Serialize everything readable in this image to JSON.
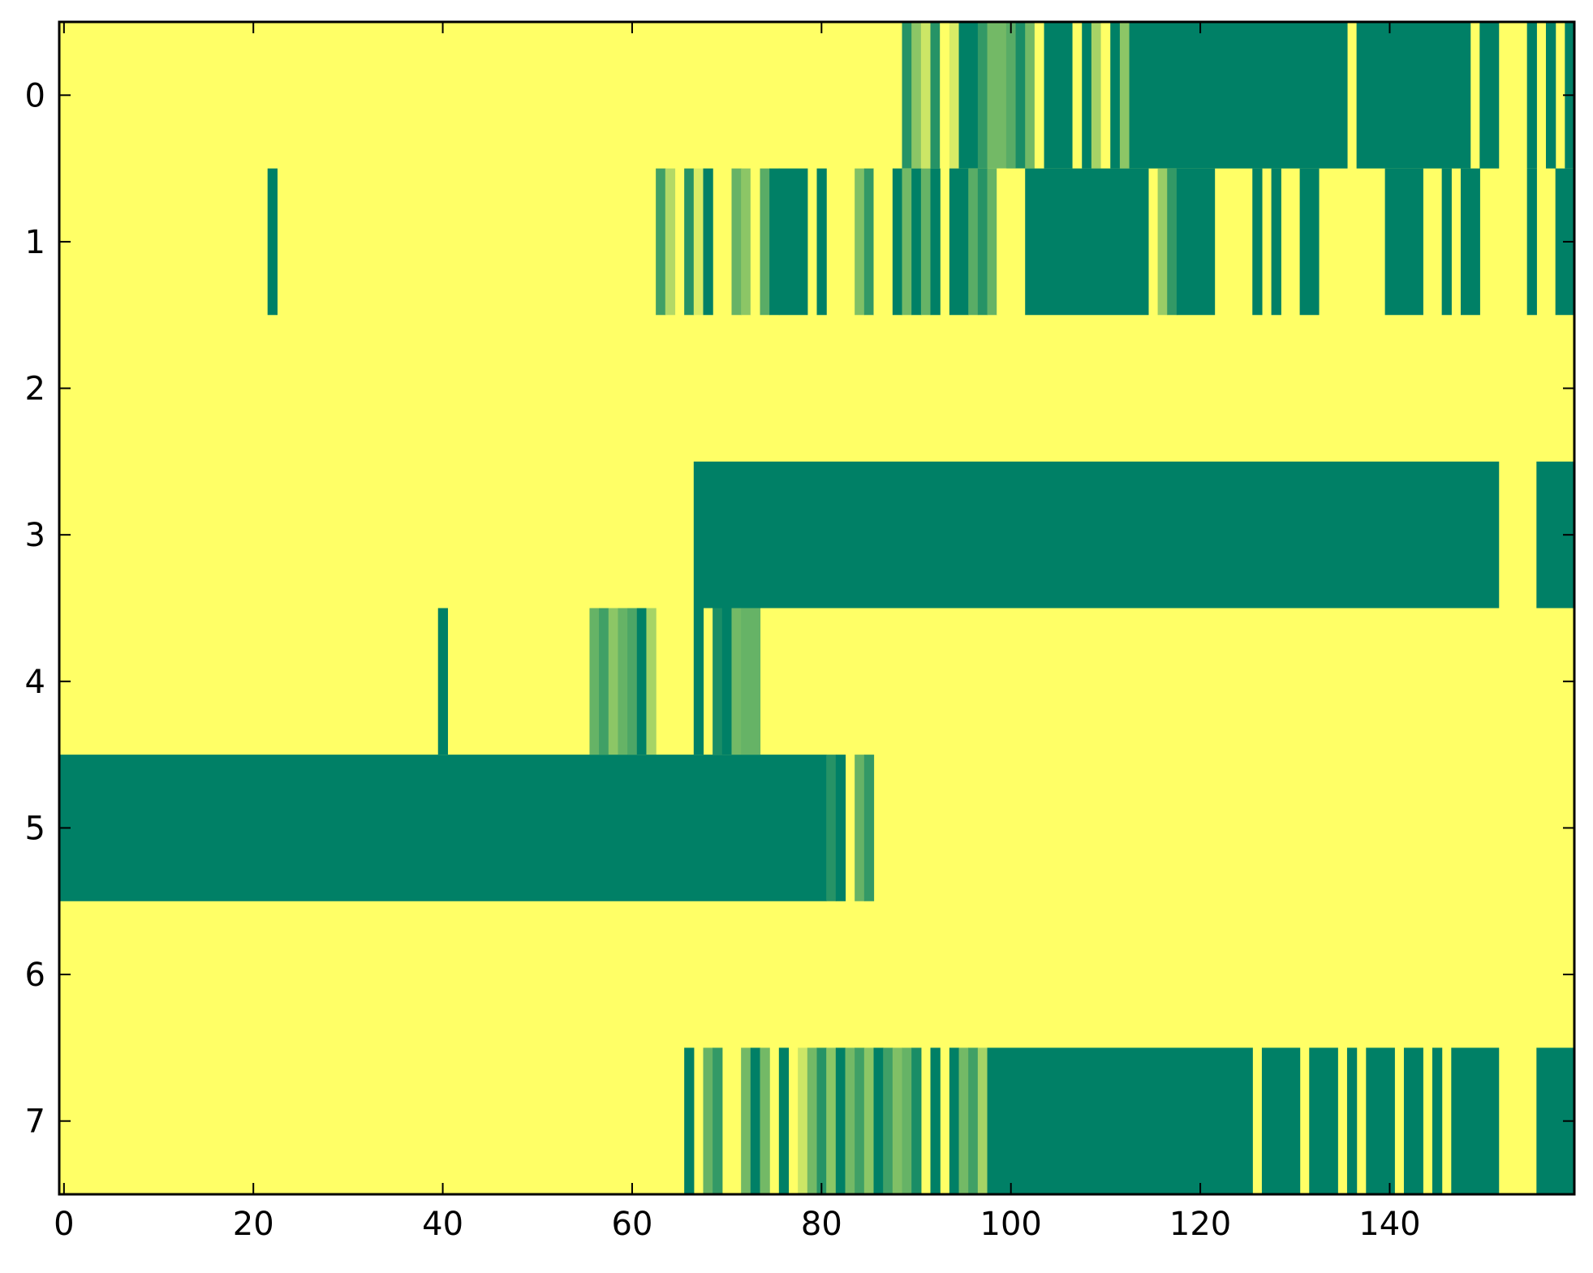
{
  "chart_data": {
    "type": "heatmap",
    "title": "",
    "xlabel": "",
    "ylabel": "",
    "xlim": [
      -0.5,
      159.5
    ],
    "ylim": [
      7.5,
      -0.5
    ],
    "x_ticks": [
      0,
      20,
      40,
      60,
      80,
      100,
      120,
      140
    ],
    "x_tick_labels": [
      "0",
      "20",
      "40",
      "60",
      "80",
      "100",
      "120",
      "140"
    ],
    "y_ticks": [
      0,
      1,
      2,
      3,
      4,
      5,
      6,
      7
    ],
    "y_tick_labels": [
      "0",
      "1",
      "2",
      "3",
      "4",
      "5",
      "6",
      "7"
    ],
    "grid": false,
    "legend": "none",
    "colormap": "summer_r",
    "value_range": [
      0,
      1
    ],
    "background_value": 0,
    "colors": {
      "low": "#ffff66",
      "high": "#008066"
    },
    "rows": [
      {
        "row": 0,
        "segments": [
          [
            89,
            90,
            0.85
          ],
          [
            90,
            91,
            0.45
          ],
          [
            91,
            92,
            0.2
          ],
          [
            92,
            93,
            0.85
          ],
          [
            93,
            94,
            0.0
          ],
          [
            94,
            95,
            0.15
          ],
          [
            95,
            97,
            1.0
          ],
          [
            97,
            98,
            0.8
          ],
          [
            98,
            100,
            0.55
          ],
          [
            100,
            101,
            0.65
          ],
          [
            101,
            102,
            0.9
          ],
          [
            102,
            103,
            0.55
          ],
          [
            103,
            104,
            0.0
          ],
          [
            104,
            107,
            1.0
          ],
          [
            107,
            108,
            0.0
          ],
          [
            108,
            109,
            1.0
          ],
          [
            109,
            110,
            0.35
          ],
          [
            110,
            111,
            0.0
          ],
          [
            111,
            112,
            1.0
          ],
          [
            112,
            113,
            0.45
          ],
          [
            113,
            136,
            1.0
          ],
          [
            137,
            149,
            1.0
          ],
          [
            150,
            152,
            1.0
          ],
          [
            155,
            156,
            1.0
          ],
          [
            157,
            158,
            1.0
          ],
          [
            159,
            160,
            1.0
          ]
        ]
      },
      {
        "row": 1,
        "segments": [
          [
            22,
            23,
            1.0
          ],
          [
            63,
            64,
            0.75
          ],
          [
            64,
            65,
            0.3
          ],
          [
            66,
            67,
            0.85
          ],
          [
            67,
            68,
            0.15
          ],
          [
            68,
            69,
            1.0
          ],
          [
            71,
            72,
            0.6
          ],
          [
            72,
            73,
            0.45
          ],
          [
            73,
            74,
            0.0
          ],
          [
            74,
            75,
            0.65
          ],
          [
            75,
            76,
            1.0
          ],
          [
            76,
            79,
            1.0
          ],
          [
            80,
            81,
            1.0
          ],
          [
            84,
            85,
            0.5
          ],
          [
            85,
            86,
            0.8
          ],
          [
            86,
            87,
            0.0
          ],
          [
            87,
            88,
            0.0
          ],
          [
            88,
            89,
            1.0
          ],
          [
            89,
            90,
            0.55
          ],
          [
            90,
            91,
            1.0
          ],
          [
            91,
            92,
            0.6
          ],
          [
            92,
            93,
            1.0
          ],
          [
            94,
            96,
            1.0
          ],
          [
            96,
            97,
            0.65
          ],
          [
            97,
            98,
            0.85
          ],
          [
            98,
            99,
            0.6
          ],
          [
            99,
            100,
            0.0
          ],
          [
            101,
            102,
            0.0
          ],
          [
            102,
            115,
            1.0
          ],
          [
            116,
            117,
            0.4
          ],
          [
            117,
            118,
            0.8
          ],
          [
            118,
            122,
            1.0
          ],
          [
            126,
            127,
            1.0
          ],
          [
            128,
            129,
            1.0
          ],
          [
            131,
            133,
            1.0
          ],
          [
            140,
            144,
            1.0
          ],
          [
            146,
            147,
            1.0
          ],
          [
            148,
            150,
            1.0
          ],
          [
            155,
            156,
            1.0
          ],
          [
            158,
            160,
            1.0
          ]
        ]
      },
      {
        "row": 2,
        "segments": []
      },
      {
        "row": 3,
        "segments": [
          [
            67,
            152,
            1.0
          ],
          [
            156,
            160,
            1.0
          ]
        ]
      },
      {
        "row": 4,
        "segments": [
          [
            40,
            41,
            1.0
          ],
          [
            56,
            57,
            0.6
          ],
          [
            57,
            58,
            0.75
          ],
          [
            58,
            59,
            0.45
          ],
          [
            59,
            60,
            0.6
          ],
          [
            60,
            61,
            0.7
          ],
          [
            61,
            62,
            1.0
          ],
          [
            62,
            63,
            0.35
          ],
          [
            67,
            68,
            1.0
          ],
          [
            69,
            70,
            0.9
          ],
          [
            70,
            71,
            1.0
          ],
          [
            71,
            72,
            0.55
          ],
          [
            72,
            74,
            0.6
          ]
        ]
      },
      {
        "row": 5,
        "segments": [
          [
            0,
            81,
            1.0
          ],
          [
            81,
            82,
            0.85
          ],
          [
            82,
            83,
            1.0
          ],
          [
            84,
            85,
            0.6
          ],
          [
            85,
            86,
            0.8
          ]
        ]
      },
      {
        "row": 6,
        "segments": []
      },
      {
        "row": 7,
        "segments": [
          [
            66,
            67,
            1.0
          ],
          [
            68,
            69,
            0.6
          ],
          [
            69,
            70,
            0.8
          ],
          [
            72,
            73,
            0.55
          ],
          [
            73,
            74,
            1.0
          ],
          [
            74,
            75,
            0.55
          ],
          [
            76,
            77,
            1.0
          ],
          [
            78,
            79,
            0.2
          ],
          [
            79,
            80,
            0.55
          ],
          [
            80,
            81,
            0.85
          ],
          [
            81,
            82,
            0.45
          ],
          [
            82,
            83,
            1.0
          ],
          [
            83,
            84,
            0.55
          ],
          [
            84,
            85,
            0.75
          ],
          [
            85,
            86,
            0.45
          ],
          [
            86,
            87,
            1.0
          ],
          [
            87,
            88,
            0.75
          ],
          [
            88,
            89,
            0.5
          ],
          [
            89,
            90,
            0.6
          ],
          [
            90,
            91,
            0.9
          ],
          [
            92,
            93,
            1.0
          ],
          [
            94,
            95,
            1.0
          ],
          [
            95,
            96,
            0.55
          ],
          [
            96,
            97,
            0.75
          ],
          [
            97,
            98,
            0.35
          ],
          [
            98,
            126,
            1.0
          ],
          [
            127,
            131,
            1.0
          ],
          [
            132,
            135,
            1.0
          ],
          [
            136,
            137,
            1.0
          ],
          [
            138,
            141,
            1.0
          ],
          [
            142,
            144,
            1.0
          ],
          [
            145,
            146,
            1.0
          ],
          [
            147,
            152,
            1.0
          ],
          [
            156,
            160,
            1.0
          ]
        ]
      }
    ]
  }
}
